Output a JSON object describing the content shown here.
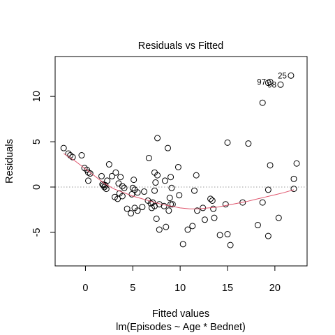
{
  "chart_data": {
    "type": "scatter",
    "title": "Residuals vs Fitted",
    "xlabel": "Fitted values",
    "subtitle": "lm(Episodes ~ Age * Bednet)",
    "ylabel": "Residuals",
    "xlim": [
      -3.2,
      23.4
    ],
    "ylim": [
      -8.7,
      14.4
    ],
    "x_ticks": [
      0,
      5,
      10,
      15,
      20
    ],
    "y_ticks": [
      -5,
      0,
      5,
      10
    ],
    "reference_line": 0,
    "colors": {
      "points": "#000000",
      "smooth": "#df536b",
      "reference": "#999999"
    },
    "points": [
      {
        "x": -2.3,
        "y": 4.3
      },
      {
        "x": -1.8,
        "y": 3.7
      },
      {
        "x": -1.6,
        "y": 3.5
      },
      {
        "x": -1.35,
        "y": 3.3
      },
      {
        "x": -0.4,
        "y": 3.5
      },
      {
        "x": -0.1,
        "y": 2.1
      },
      {
        "x": 0.15,
        "y": 1.9
      },
      {
        "x": 0.3,
        "y": 1.6
      },
      {
        "x": 0.5,
        "y": 1.5
      },
      {
        "x": 0.3,
        "y": 0.7
      },
      {
        "x": 1.7,
        "y": 1.2
      },
      {
        "x": 1.8,
        "y": 0.3
      },
      {
        "x": 1.9,
        "y": 0.2
      },
      {
        "x": 2.0,
        "y": 0.0
      },
      {
        "x": 2.1,
        "y": 0.2
      },
      {
        "x": 2.2,
        "y": -0.2
      },
      {
        "x": 2.3,
        "y": 0.7
      },
      {
        "x": 2.5,
        "y": 2.5
      },
      {
        "x": 2.8,
        "y": 1.2
      },
      {
        "x": 3.2,
        "y": 1.6
      },
      {
        "x": 3.7,
        "y": 1.1
      },
      {
        "x": 3.5,
        "y": 0.4
      },
      {
        "x": 3.9,
        "y": 0.1
      },
      {
        "x": 4.1,
        "y": -0.1
      },
      {
        "x": 3.6,
        "y": -0.7
      },
      {
        "x": 3.9,
        "y": -1.0
      },
      {
        "x": 3.1,
        "y": -1.1
      },
      {
        "x": 3.4,
        "y": -1.3
      },
      {
        "x": 4.4,
        "y": -2.4
      },
      {
        "x": 4.8,
        "y": -2.9
      },
      {
        "x": 5.2,
        "y": -2.3
      },
      {
        "x": 5.5,
        "y": -2.6
      },
      {
        "x": 5.0,
        "y": -0.1
      },
      {
        "x": 5.2,
        "y": -0.3
      },
      {
        "x": 5.5,
        "y": -0.6
      },
      {
        "x": 4.9,
        "y": -0.8
      },
      {
        "x": 5.1,
        "y": 0.8
      },
      {
        "x": 6.2,
        "y": -0.5
      },
      {
        "x": 6.0,
        "y": -2.2
      },
      {
        "x": 6.6,
        "y": -1.5
      },
      {
        "x": 6.9,
        "y": -1.8
      },
      {
        "x": 7.1,
        "y": -1.7
      },
      {
        "x": 7.0,
        "y": -2.3
      },
      {
        "x": 7.3,
        "y": -2.1
      },
      {
        "x": 6.7,
        "y": 3.2
      },
      {
        "x": 7.3,
        "y": 1.6
      },
      {
        "x": 7.6,
        "y": 1.3
      },
      {
        "x": 7.8,
        "y": -1.9
      },
      {
        "x": 7.5,
        "y": -3.5
      },
      {
        "x": 7.8,
        "y": -4.7
      },
      {
        "x": 8.3,
        "y": -2.1
      },
      {
        "x": 8.5,
        "y": -4.4
      },
      {
        "x": 7.3,
        "y": -0.4
      },
      {
        "x": 7.4,
        "y": 0.5
      },
      {
        "x": 8.4,
        "y": 0.7
      },
      {
        "x": 7.6,
        "y": 5.4
      },
      {
        "x": 8.7,
        "y": 4.3
      },
      {
        "x": 8.9,
        "y": -1.2
      },
      {
        "x": 8.8,
        "y": -2.6
      },
      {
        "x": 9.0,
        "y": -1.9
      },
      {
        "x": 9.1,
        "y": -0.1
      },
      {
        "x": 9.2,
        "y": -1.9
      },
      {
        "x": 9.0,
        "y": 1.1
      },
      {
        "x": 9.8,
        "y": 2.2
      },
      {
        "x": 9.9,
        "y": -0.9
      },
      {
        "x": 10.3,
        "y": -6.3
      },
      {
        "x": 10.8,
        "y": -4.7
      },
      {
        "x": 11.3,
        "y": -4.3
      },
      {
        "x": 11.5,
        "y": -0.4
      },
      {
        "x": 11.7,
        "y": 1.3
      },
      {
        "x": 11.8,
        "y": -2.6
      },
      {
        "x": 12.4,
        "y": -2.3
      },
      {
        "x": 12.6,
        "y": -3.6
      },
      {
        "x": 13.2,
        "y": -1.3
      },
      {
        "x": 13.4,
        "y": -1.5
      },
      {
        "x": 13.5,
        "y": -2.4
      },
      {
        "x": 13.6,
        "y": -3.4
      },
      {
        "x": 14.2,
        "y": -5.3
      },
      {
        "x": 14.8,
        "y": -1.9
      },
      {
        "x": 15.0,
        "y": 4.9
      },
      {
        "x": 15.0,
        "y": -5.2
      },
      {
        "x": 15.3,
        "y": -6.4
      },
      {
        "x": 16.6,
        "y": -1.7
      },
      {
        "x": 17.2,
        "y": 4.8
      },
      {
        "x": 18.2,
        "y": -4.2
      },
      {
        "x": 18.7,
        "y": -1.7
      },
      {
        "x": 18.7,
        "y": 9.3
      },
      {
        "x": 19.3,
        "y": 11.5
      },
      {
        "x": 19.5,
        "y": 11.6
      },
      {
        "x": 20.6,
        "y": 11.3
      },
      {
        "x": 21.7,
        "y": 12.3
      },
      {
        "x": 19.3,
        "y": -0.3
      },
      {
        "x": 19.5,
        "y": 2.4
      },
      {
        "x": 19.3,
        "y": -5.4
      },
      {
        "x": 20.4,
        "y": -3.4
      },
      {
        "x": 22.0,
        "y": 0.9
      },
      {
        "x": 22.0,
        "y": -0.2
      },
      {
        "x": 22.3,
        "y": 2.6
      }
    ],
    "labeled_points": [
      {
        "label": "25",
        "x": 21.7,
        "y": 12.3
      },
      {
        "label": "98",
        "x": 20.6,
        "y": 11.3
      },
      {
        "label": "97",
        "x": 19.5,
        "y": 11.6
      }
    ],
    "smooth_line": [
      {
        "x": -2.3,
        "y": 3.7
      },
      {
        "x": -1.0,
        "y": 2.8
      },
      {
        "x": 0.0,
        "y": 2.0
      },
      {
        "x": 1.0,
        "y": 1.2
      },
      {
        "x": 2.0,
        "y": 0.4
      },
      {
        "x": 3.0,
        "y": -0.2
      },
      {
        "x": 4.0,
        "y": -0.6
      },
      {
        "x": 5.0,
        "y": -1.0
      },
      {
        "x": 6.0,
        "y": -1.3
      },
      {
        "x": 7.0,
        "y": -1.6
      },
      {
        "x": 8.0,
        "y": -1.9
      },
      {
        "x": 9.0,
        "y": -2.1
      },
      {
        "x": 10.0,
        "y": -2.3
      },
      {
        "x": 11.0,
        "y": -2.4
      },
      {
        "x": 12.0,
        "y": -2.4
      },
      {
        "x": 13.0,
        "y": -2.3
      },
      {
        "x": 14.0,
        "y": -2.2
      },
      {
        "x": 15.0,
        "y": -2.0
      },
      {
        "x": 16.0,
        "y": -1.8
      },
      {
        "x": 17.0,
        "y": -1.6
      },
      {
        "x": 18.0,
        "y": -1.35
      },
      {
        "x": 19.0,
        "y": -1.1
      },
      {
        "x": 20.0,
        "y": -0.85
      },
      {
        "x": 21.0,
        "y": -0.6
      },
      {
        "x": 22.0,
        "y": -0.3
      }
    ]
  }
}
